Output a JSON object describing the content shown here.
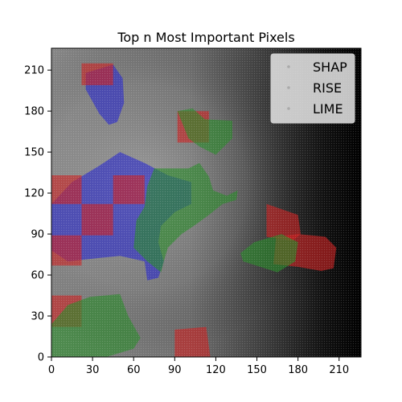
{
  "chart_data": {
    "type": "heatmap",
    "title": "Top n Most Important Pixels",
    "xlabel": "",
    "ylabel": "",
    "xlim": [
      0,
      226
    ],
    "ylim": [
      0,
      226
    ],
    "x_ticks": [
      "0",
      "30",
      "60",
      "90",
      "120",
      "150",
      "180",
      "210"
    ],
    "y_ticks": [
      "0",
      "30",
      "60",
      "90",
      "120",
      "150",
      "180",
      "210"
    ],
    "x_tick_values": [
      0,
      30,
      60,
      90,
      120,
      150,
      180,
      210
    ],
    "y_tick_values": [
      0,
      30,
      60,
      90,
      120,
      150,
      180,
      210
    ],
    "grid": false,
    "legend_placement": "upper-right",
    "background": "grayscale medical image (mammogram), dark to the right",
    "series": [
      {
        "name": "SHAP",
        "color": "#2a2acc",
        "regions": [
          {
            "polygon": [
              [
                25,
                208
              ],
              [
                45,
                214
              ],
              [
                52,
                204
              ],
              [
                53,
                186
              ],
              [
                48,
                172
              ],
              [
                42,
                170
              ],
              [
                35,
                178
              ],
              [
                25,
                196
              ]
            ]
          },
          {
            "polygon": [
              [
                0,
                112
              ],
              [
                15,
                128
              ],
              [
                35,
                140
              ],
              [
                50,
                150
              ],
              [
                68,
                142
              ],
              [
                85,
                133
              ],
              [
                102,
                128
              ],
              [
                102,
                112
              ],
              [
                90,
                106
              ],
              [
                80,
                96
              ],
              [
                78,
                84
              ],
              [
                82,
                70
              ],
              [
                78,
                58
              ],
              [
                70,
                56
              ],
              [
                68,
                70
              ],
              [
                50,
                74
              ],
              [
                30,
                72
              ],
              [
                12,
                70
              ],
              [
                0,
                78
              ]
            ]
          }
        ]
      },
      {
        "name": "RISE",
        "color": "#cc2222",
        "regions": [
          {
            "polygon": [
              [
                22,
                215
              ],
              [
                45,
                215
              ],
              [
                45,
                199
              ],
              [
                22,
                199
              ]
            ]
          },
          {
            "polygon": [
              [
                92,
                180
              ],
              [
                115,
                180
              ],
              [
                115,
                157
              ],
              [
                92,
                157
              ]
            ]
          },
          {
            "polygon": [
              [
                0,
                133
              ],
              [
                22,
                133
              ],
              [
                22,
                112
              ],
              [
                0,
                112
              ]
            ]
          },
          {
            "polygon": [
              [
                45,
                133
              ],
              [
                68,
                133
              ],
              [
                68,
                112
              ],
              [
                45,
                112
              ]
            ]
          },
          {
            "polygon": [
              [
                22,
                112
              ],
              [
                45,
                112
              ],
              [
                45,
                89
              ],
              [
                22,
                89
              ]
            ]
          },
          {
            "polygon": [
              [
                0,
                89
              ],
              [
                22,
                89
              ],
              [
                22,
                67
              ],
              [
                0,
                67
              ]
            ]
          },
          {
            "polygon": [
              [
                157,
                112
              ],
              [
                180,
                104
              ],
              [
                182,
                90
              ],
              [
                176,
                85
              ],
              [
                157,
                88
              ]
            ]
          },
          {
            "polygon": [
              [
                164,
                88
              ],
              [
                180,
                90
              ],
              [
                200,
                88
              ],
              [
                208,
                80
              ],
              [
                206,
                65
              ],
              [
                197,
                63
              ],
              [
                180,
                66
              ],
              [
                162,
                68
              ]
            ]
          },
          {
            "polygon": [
              [
                0,
                45
              ],
              [
                22,
                45
              ],
              [
                22,
                22
              ],
              [
                0,
                22
              ]
            ]
          },
          {
            "polygon": [
              [
                90,
                20
              ],
              [
                113,
                22
              ],
              [
                116,
                0
              ],
              [
                90,
                0
              ]
            ]
          }
        ]
      },
      {
        "name": "LIME",
        "color": "#2a8a2a",
        "regions": [
          {
            "polygon": [
              [
                92,
                180
              ],
              [
                103,
                182
              ],
              [
                112,
                174
              ],
              [
                132,
                173
              ],
              [
                132,
                160
              ],
              [
                120,
                148
              ],
              [
                108,
                154
              ],
              [
                100,
                160
              ]
            ]
          },
          {
            "polygon": [
              [
                75,
                138
              ],
              [
                100,
                138
              ],
              [
                108,
                142
              ],
              [
                115,
                132
              ],
              [
                118,
                122
              ],
              [
                128,
                118
              ],
              [
                136,
                122
              ],
              [
                135,
                115
              ],
              [
                125,
                112
              ],
              [
                115,
                104
              ],
              [
                104,
                96
              ],
              [
                95,
                90
              ],
              [
                85,
                80
              ],
              [
                82,
                70
              ],
              [
                80,
                62
              ],
              [
                70,
                70
              ],
              [
                60,
                80
              ],
              [
                62,
                100
              ],
              [
                68,
                110
              ],
              [
                70,
                125
              ]
            ]
          },
          {
            "polygon": [
              [
                138,
                76
              ],
              [
                148,
                84
              ],
              [
                168,
                90
              ],
              [
                180,
                84
              ],
              [
                178,
                70
              ],
              [
                165,
                62
              ],
              [
                140,
                70
              ]
            ]
          },
          {
            "polygon": [
              [
                12,
                38
              ],
              [
                28,
                44
              ],
              [
                50,
                46
              ],
              [
                56,
                30
              ],
              [
                65,
                14
              ],
              [
                60,
                6
              ],
              [
                40,
                0
              ],
              [
                0,
                0
              ],
              [
                0,
                24
              ]
            ]
          }
        ]
      }
    ]
  }
}
